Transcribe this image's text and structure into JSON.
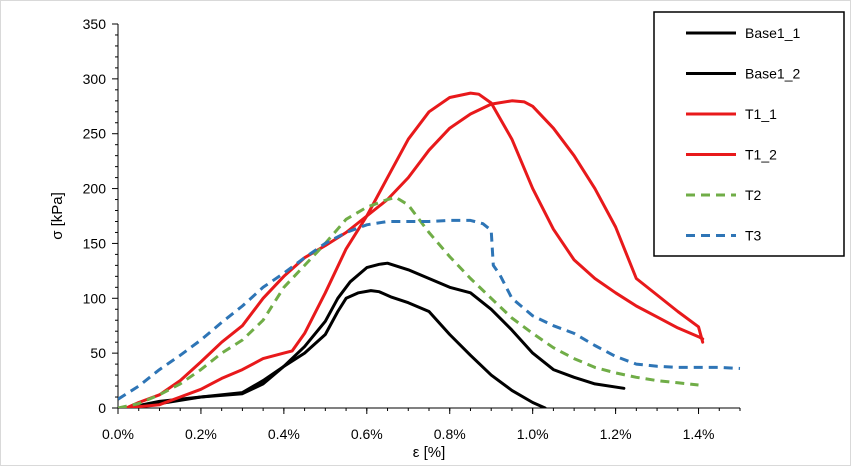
{
  "chart_data": {
    "type": "line",
    "title": "",
    "xlabel": "ε [%]",
    "ylabel": "σ [kPa]",
    "xlim": [
      0,
      1.5
    ],
    "ylim": [
      0,
      350
    ],
    "x_ticks": [
      0,
      0.2,
      0.4,
      0.6,
      0.8,
      1.0,
      1.2,
      1.4
    ],
    "x_tick_labels": [
      "0.0%",
      "0.2%",
      "0.4%",
      "0.6%",
      "0.8%",
      "1.0%",
      "1.2%",
      "1.4%"
    ],
    "y_ticks": [
      0,
      50,
      100,
      150,
      200,
      250,
      300,
      350
    ],
    "y_tick_labels": [
      "0",
      "50",
      "100",
      "150",
      "200",
      "250",
      "300",
      "350"
    ],
    "grid": false,
    "legend": "right",
    "series": [
      {
        "name": "Base1_1",
        "color": "#000000",
        "dash": "solid",
        "x": [
          0.02,
          0.1,
          0.2,
          0.3,
          0.35,
          0.4,
          0.45,
          0.5,
          0.53,
          0.56,
          0.6,
          0.63,
          0.65,
          0.7,
          0.75,
          0.8,
          0.85,
          0.9,
          0.95,
          1.0,
          1.05,
          1.1,
          1.15,
          1.22
        ],
        "y": [
          0,
          4,
          10,
          14,
          25,
          38,
          56,
          79,
          100,
          115,
          128,
          131,
          132,
          126,
          118,
          110,
          105,
          90,
          71,
          50,
          35,
          28,
          22,
          18
        ]
      },
      {
        "name": "Base1_2",
        "color": "#000000",
        "dash": "solid",
        "x": [
          0.02,
          0.1,
          0.2,
          0.3,
          0.35,
          0.4,
          0.45,
          0.5,
          0.53,
          0.55,
          0.58,
          0.61,
          0.63,
          0.66,
          0.7,
          0.75,
          0.8,
          0.85,
          0.9,
          0.95,
          1.0,
          1.03
        ],
        "y": [
          0,
          6,
          10,
          13,
          22,
          38,
          50,
          67,
          88,
          100,
          105,
          107,
          106,
          101,
          96,
          88,
          67,
          48,
          30,
          16,
          5,
          0
        ]
      },
      {
        "name": "T1_1",
        "color": "#e8191b",
        "dash": "solid",
        "x": [
          0.02,
          0.1,
          0.15,
          0.2,
          0.25,
          0.3,
          0.35,
          0.4,
          0.42,
          0.45,
          0.5,
          0.55,
          0.6,
          0.65,
          0.7,
          0.75,
          0.8,
          0.85,
          0.87,
          0.9,
          0.95,
          1.0,
          1.05,
          1.1,
          1.15,
          1.2,
          1.25,
          1.3,
          1.35,
          1.4,
          1.41
        ],
        "y": [
          0,
          3,
          10,
          17,
          27,
          35,
          45,
          50,
          52,
          68,
          105,
          145,
          175,
          210,
          245,
          270,
          283,
          287,
          286,
          278,
          245,
          200,
          163,
          135,
          118,
          105,
          93,
          83,
          73,
          65,
          63
        ]
      },
      {
        "name": "T1_2",
        "color": "#e8191b",
        "dash": "solid",
        "x": [
          0.02,
          0.05,
          0.1,
          0.15,
          0.2,
          0.25,
          0.3,
          0.35,
          0.4,
          0.45,
          0.5,
          0.55,
          0.6,
          0.65,
          0.7,
          0.75,
          0.8,
          0.85,
          0.9,
          0.95,
          0.98,
          1.0,
          1.05,
          1.1,
          1.15,
          1.2,
          1.25,
          1.3,
          1.35,
          1.4,
          1.41
        ],
        "y": [
          0,
          5,
          12,
          25,
          42,
          60,
          75,
          100,
          120,
          137,
          148,
          160,
          175,
          190,
          210,
          235,
          255,
          268,
          277,
          280,
          279,
          275,
          255,
          230,
          200,
          165,
          118,
          103,
          88,
          74,
          60
        ]
      },
      {
        "name": "T2",
        "color": "#70ad47",
        "dash": "dashed",
        "x": [
          0.0,
          0.05,
          0.1,
          0.15,
          0.2,
          0.25,
          0.3,
          0.35,
          0.4,
          0.45,
          0.5,
          0.55,
          0.6,
          0.65,
          0.67,
          0.7,
          0.75,
          0.8,
          0.85,
          0.9,
          0.95,
          1.0,
          1.05,
          1.1,
          1.15,
          1.2,
          1.25,
          1.3,
          1.35,
          1.4
        ],
        "y": [
          0,
          4,
          12,
          22,
          35,
          50,
          62,
          80,
          110,
          130,
          150,
          172,
          183,
          190,
          192,
          185,
          160,
          138,
          118,
          100,
          82,
          68,
          55,
          45,
          37,
          32,
          28,
          25,
          23,
          21
        ]
      },
      {
        "name": "T3",
        "color": "#2e75b6",
        "dash": "dashed",
        "x": [
          0.0,
          0.05,
          0.1,
          0.15,
          0.2,
          0.25,
          0.3,
          0.35,
          0.4,
          0.45,
          0.5,
          0.55,
          0.6,
          0.65,
          0.7,
          0.75,
          0.8,
          0.85,
          0.88,
          0.9,
          0.905,
          0.92,
          0.95,
          1.0,
          1.05,
          1.1,
          1.15,
          1.2,
          1.25,
          1.3,
          1.35,
          1.4,
          1.45,
          1.5
        ],
        "y": [
          8,
          20,
          35,
          48,
          62,
          78,
          93,
          110,
          123,
          137,
          150,
          160,
          167,
          170,
          170,
          170,
          171,
          171,
          168,
          162,
          130,
          122,
          100,
          84,
          75,
          68,
          57,
          47,
          40,
          38,
          37,
          37,
          37,
          36
        ]
      }
    ]
  }
}
